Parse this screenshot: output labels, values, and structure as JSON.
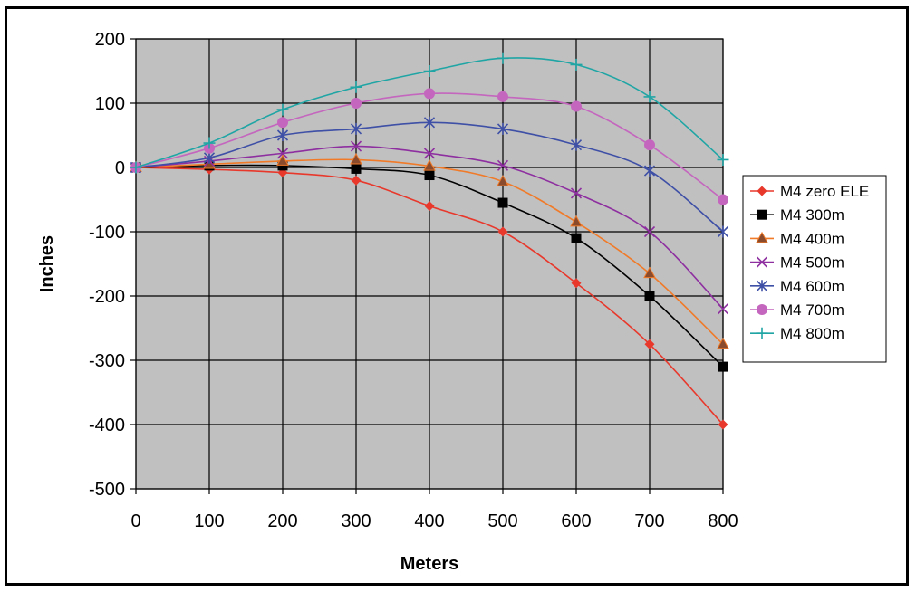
{
  "chart_data": {
    "type": "line",
    "title": "",
    "xlabel": "Meters",
    "ylabel": "Inches",
    "x": [
      0,
      100,
      200,
      300,
      400,
      500,
      600,
      700,
      800
    ],
    "xlim": [
      0,
      800
    ],
    "ylim": [
      -500,
      200
    ],
    "xticks": [
      0,
      100,
      200,
      300,
      400,
      500,
      600,
      700,
      800
    ],
    "yticks": [
      200,
      100,
      0,
      -100,
      -200,
      -300,
      -400,
      -500
    ],
    "grid": true,
    "legend_position": "right",
    "plot_background": "#c0c0c0",
    "series": [
      {
        "name": "M4 zero ELE",
        "color": "#e8382c",
        "marker": "diamond",
        "values": [
          0,
          -3,
          -8,
          -20,
          -60,
          -100,
          -180,
          -275,
          -400
        ]
      },
      {
        "name": "M4 300m",
        "color": "#000000",
        "marker": "square",
        "values": [
          0,
          3,
          3,
          -2,
          -12,
          -55,
          -110,
          -200,
          -310
        ]
      },
      {
        "name": "M4 400m",
        "color": "#f07a28",
        "marker": "triangle",
        "values": [
          0,
          5,
          10,
          12,
          2,
          -22,
          -85,
          -165,
          -275
        ]
      },
      {
        "name": "M4 500m",
        "color": "#8e2fa0",
        "marker": "x",
        "values": [
          0,
          10,
          22,
          33,
          22,
          3,
          -40,
          -100,
          -220
        ]
      },
      {
        "name": "M4 600m",
        "color": "#3e4fa6",
        "marker": "star",
        "values": [
          0,
          15,
          50,
          60,
          70,
          60,
          35,
          -5,
          -100
        ]
      },
      {
        "name": "M4 700m",
        "color": "#c466be",
        "marker": "circle",
        "values": [
          0,
          30,
          70,
          100,
          115,
          110,
          95,
          35,
          -50
        ]
      },
      {
        "name": "M4 800m",
        "color": "#20a5a5",
        "marker": "plus",
        "values": [
          0,
          38,
          90,
          125,
          150,
          170,
          160,
          110,
          12
        ]
      }
    ]
  }
}
